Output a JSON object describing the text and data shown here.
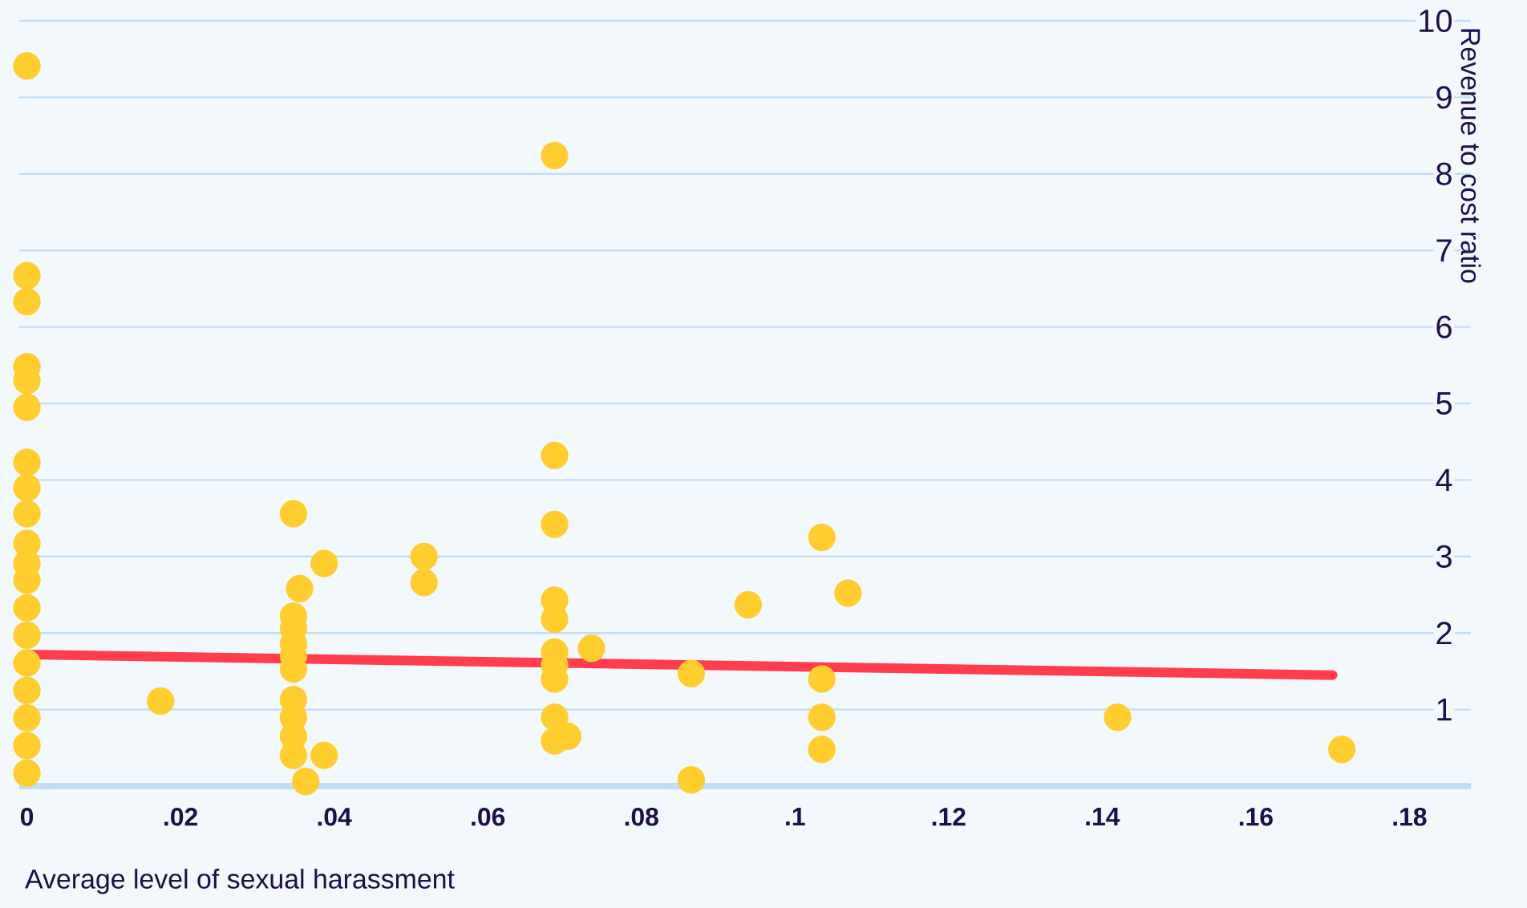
{
  "chart_data": {
    "type": "scatter",
    "xlabel": "Average level of sexual harassment",
    "ylabel": "Revenue to cost ratio",
    "xlim": [
      -0.001,
      0.188
    ],
    "ylim": [
      0,
      10
    ],
    "xticks": [
      0,
      {
        "value": 0.02,
        "label": ".02"
      },
      {
        "value": 0.04,
        "label": ".04"
      },
      {
        "value": 0.06,
        "label": ".06"
      },
      {
        "value": 0.08,
        "label": ".08"
      },
      {
        "value": 0.1,
        "label": ".1"
      },
      {
        "value": 0.12,
        "label": ".12"
      },
      {
        "value": 0.14,
        "label": ".14"
      },
      {
        "value": 0.16,
        "label": ".16"
      },
      {
        "value": 0.18,
        "label": ".18"
      }
    ],
    "yticks": [
      1,
      2,
      3,
      4,
      5,
      6,
      7,
      8,
      9,
      10
    ],
    "grid": "y",
    "series": [
      {
        "type": "scatter",
        "marker": "circle",
        "color": "#ffcd2e",
        "x": [
          0,
          0,
          0,
          0,
          0,
          0,
          0,
          0,
          0,
          0,
          0,
          0,
          0,
          0,
          0,
          0,
          0,
          0,
          0,
          0.0174,
          0.0347,
          0.0355,
          0.0347,
          0.0347,
          0.0347,
          0.0347,
          0.0347,
          0.0347,
          0.0347,
          0.0347,
          0.0347,
          0.0363,
          0.0387,
          0.0387,
          0.0517,
          0.0517,
          0.0687,
          0.0687,
          0.0687,
          0.0687,
          0.0687,
          0.0687,
          0.0687,
          0.0687,
          0.0687,
          0.0687,
          0.0704,
          0.0735,
          0.0865,
          0.0865,
          0.0939,
          0.1035,
          0.1035,
          0.1035,
          0.1035,
          0.1069,
          0.142,
          0.1712
        ],
        "values": [
          9.41,
          6.67,
          6.33,
          5.48,
          5.3,
          4.95,
          4.23,
          3.9,
          3.56,
          3.17,
          2.69,
          2.33,
          1.97,
          1.61,
          1.25,
          0.89,
          0.53,
          0.17,
          2.91,
          1.11,
          3.56,
          2.58,
          2.22,
          2.06,
          1.86,
          1.7,
          1.53,
          1.13,
          0.9,
          0.65,
          0.4,
          0.06,
          0.4,
          2.91,
          3.0,
          2.66,
          8.24,
          4.32,
          3.42,
          2.43,
          2.18,
          1.75,
          1.58,
          1.4,
          0.9,
          0.59,
          0.65,
          1.8,
          1.47,
          0.08,
          2.37,
          3.25,
          1.4,
          0.9,
          0.48,
          2.52,
          0.9,
          0.48
        ]
      },
      {
        "type": "line",
        "marker": "none",
        "color": "#ff3d4f",
        "x": [
          0,
          0.17
        ],
        "values": [
          1.72,
          1.45
        ]
      }
    ]
  }
}
